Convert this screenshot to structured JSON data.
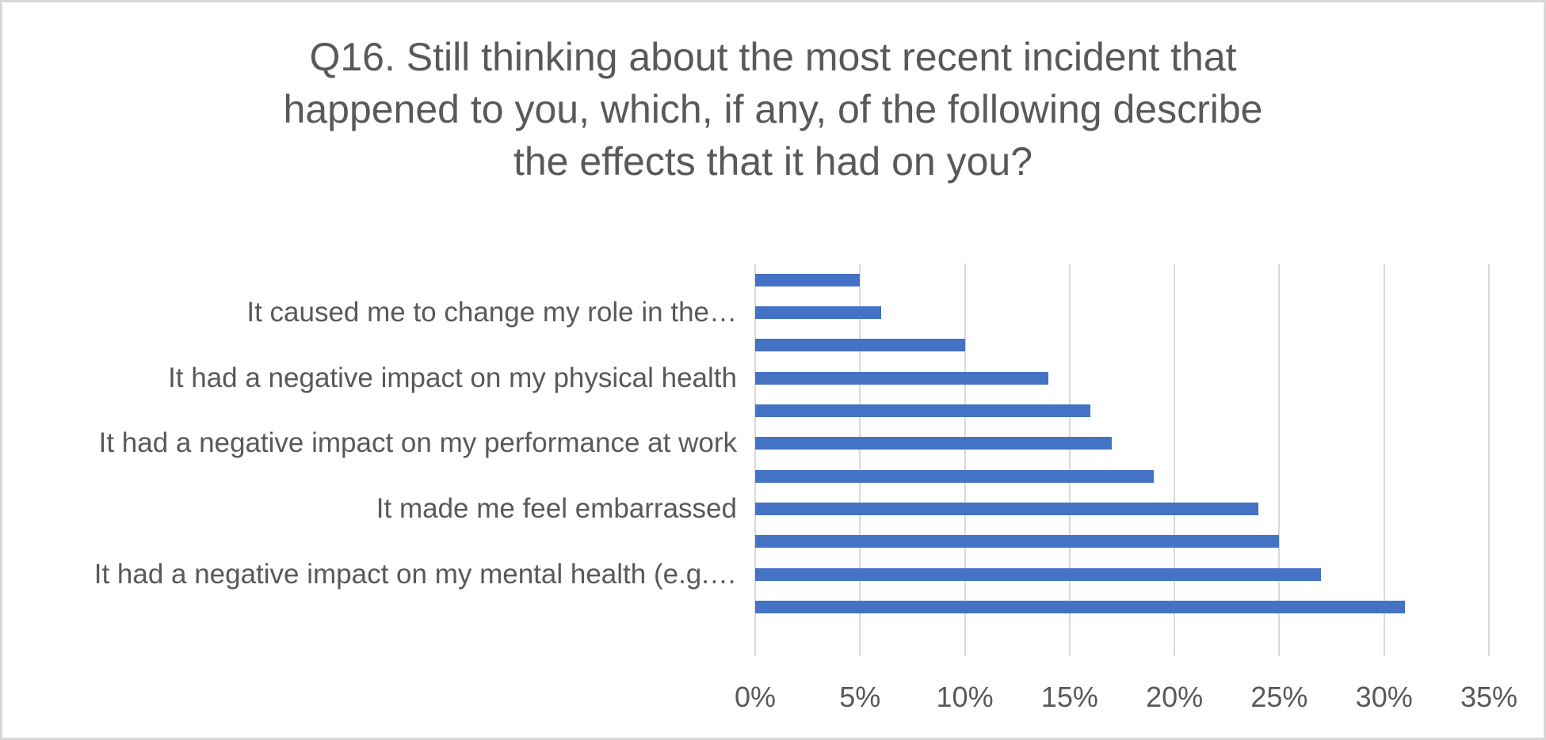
{
  "page": {
    "background_color": "#ffffff",
    "border_color": "#d8d8d8"
  },
  "chart_data": {
    "type": "bar",
    "orientation": "horizontal",
    "title": "Q16. Still thinking about the most recent incident that happened to you, which, if any, of the following describe the effects that it had on you?",
    "title_lines": [
      "Q16. Still thinking about the most recent incident that",
      "happened to you, which, if any, of the following describe",
      "the effects that it had on you?"
    ],
    "bars": [
      {
        "value": 5,
        "label": ""
      },
      {
        "value": 6,
        "label": "It caused me to change my role in the…"
      },
      {
        "value": 10,
        "label": ""
      },
      {
        "value": 14,
        "label": "It had a negative impact on my physical health"
      },
      {
        "value": 16,
        "label": ""
      },
      {
        "value": 17,
        "label": "It had a negative impact on my performance at work"
      },
      {
        "value": 19,
        "label": ""
      },
      {
        "value": 24,
        "label": "It made me feel embarrassed"
      },
      {
        "value": 25,
        "label": ""
      },
      {
        "value": 27,
        "label": "It had a negative impact on my mental health (e.g.…"
      },
      {
        "value": 31,
        "label": ""
      }
    ],
    "empty_trailing_slots": 1,
    "x_axis": {
      "tick_labels": [
        "0%",
        "5%",
        "10%",
        "15%",
        "20%",
        "25%",
        "30%",
        "35%"
      ],
      "min": 0,
      "max": 35,
      "step": 5,
      "unit": "%"
    },
    "grid": true,
    "legend": false,
    "colors": {
      "bar": "#4472c4",
      "gridline": "#d9d9d9",
      "text": "#595959",
      "title": "#595959",
      "background": "#ffffff"
    }
  }
}
